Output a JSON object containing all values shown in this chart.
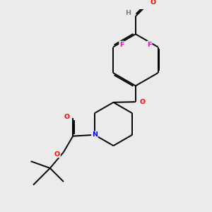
{
  "background_color": "#ebebeb",
  "bond_color": "#000000",
  "atom_colors": {
    "O": "#ff0000",
    "F": "#ff00cc",
    "N": "#0000ff",
    "C": "#000000",
    "H": "#7a7a7a"
  }
}
